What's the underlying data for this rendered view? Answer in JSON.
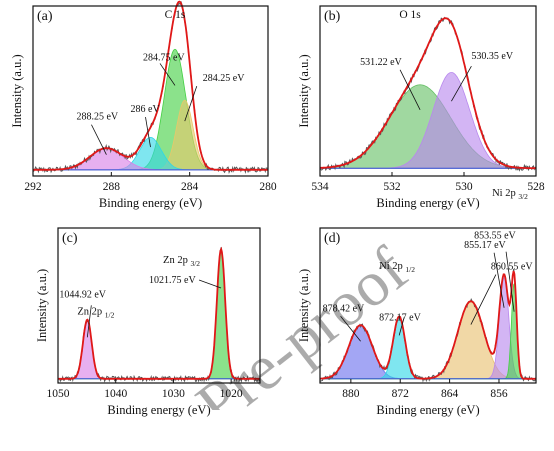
{
  "chart_data": [
    {
      "panel_label": "(a)",
      "type": "line",
      "title": "C 1s",
      "xlabel": "Binding energy (eV)",
      "ylabel": "Intensity (a.u.)",
      "xlim": [
        292,
        280
      ],
      "xticks": [
        292,
        288,
        284,
        280
      ],
      "y_ticks_shown": false,
      "ylim": [
        0,
        1.1
      ],
      "baseline": 0.04,
      "peaks": [
        {
          "center": 284.75,
          "height": 0.78,
          "fwhm": 1.3,
          "color": "#44d044",
          "annotation": "284.75 eV"
        },
        {
          "center": 284.25,
          "height": 0.45,
          "fwhm": 1.0,
          "color": "#e8c86a",
          "annotation": "284.25 eV"
        },
        {
          "center": 286.0,
          "height": 0.21,
          "fwhm": 1.3,
          "color": "#30d6e6",
          "annotation": "286 eV"
        },
        {
          "center": 288.25,
          "height": 0.14,
          "fwhm": 2.0,
          "color": "#d880e6",
          "annotation": "288.25 eV"
        }
      ],
      "fit_color": "#e01818",
      "raw_color": "#555555"
    },
    {
      "panel_label": "(b)",
      "type": "line",
      "title": "O 1s",
      "xlabel": "Binding energy (eV)",
      "ylabel": "Intensity (a.u.)",
      "xlim": [
        534,
        528
      ],
      "xticks": [
        534,
        532,
        530,
        528
      ],
      "y_ticks_shown": false,
      "ylim": [
        0,
        1.1
      ],
      "baseline": 0.05,
      "peaks": [
        {
          "center": 531.22,
          "height": 0.54,
          "fwhm": 2.0,
          "color": "#66c066",
          "annotation": "531.22 eV"
        },
        {
          "center": 530.35,
          "height": 0.62,
          "fwhm": 1.2,
          "color": "#b888ee",
          "annotation": "530.35 eV"
        }
      ],
      "fit_color": "#e01818",
      "raw_color": "#555555"
    },
    {
      "panel_label": "(c)",
      "type": "line",
      "xlabel": "Binding energy (eV)",
      "ylabel": "Intensity (a.u.)",
      "xlim": [
        1050,
        1015
      ],
      "xticks": [
        1050,
        1040,
        1030,
        1020
      ],
      "y_ticks_shown": false,
      "ylim": [
        0,
        1.1
      ],
      "baseline": 0.03,
      "peaks": [
        {
          "center": 1044.92,
          "height": 0.42,
          "fwhm": 1.8,
          "color": "#d880e6",
          "annotation": "1044.92 eV",
          "label_main": "Zn 2p",
          "label_sub": "1/2"
        },
        {
          "center": 1021.75,
          "height": 0.92,
          "fwhm": 1.7,
          "color": "#44d044",
          "annotation": "1021.75 eV",
          "label_main": "Zn 2p",
          "label_sub": "3/2"
        }
      ],
      "fit_color": "#e01818",
      "raw_color": "#555555"
    },
    {
      "panel_label": "(d)",
      "type": "line",
      "xlabel": "Binding energy (eV)",
      "ylabel": "Intensity (a.u.)",
      "xlim": [
        885,
        850
      ],
      "xticks": [
        880,
        872,
        864,
        856
      ],
      "y_ticks_shown": false,
      "ylim": [
        0,
        1.1
      ],
      "baseline": 0.03,
      "peaks": [
        {
          "center": 878.42,
          "height": 0.38,
          "fwhm": 4.5,
          "color": "#6a70ee",
          "annotation": "878.42 eV"
        },
        {
          "center": 872.17,
          "height": 0.44,
          "fwhm": 2.3,
          "color": "#30d6e6",
          "annotation": "872.17 eV",
          "label_main": "Ni 2p",
          "label_sub": "1/2"
        },
        {
          "center": 860.55,
          "height": 0.55,
          "fwhm": 5.0,
          "color": "#e8c070",
          "annotation": "860.55 eV"
        },
        {
          "center": 855.17,
          "height": 0.72,
          "fwhm": 1.8,
          "color": "#b888ee",
          "annotation": "855.17 eV"
        },
        {
          "center": 853.55,
          "height": 0.68,
          "fwhm": 1.0,
          "color": "#44d044",
          "annotation": "853.55 eV",
          "label_main": "Ni 2p",
          "label_sub": "3/2"
        }
      ],
      "fit_color": "#e01818",
      "raw_color": "#555555"
    }
  ],
  "watermark": "Pre-proof"
}
